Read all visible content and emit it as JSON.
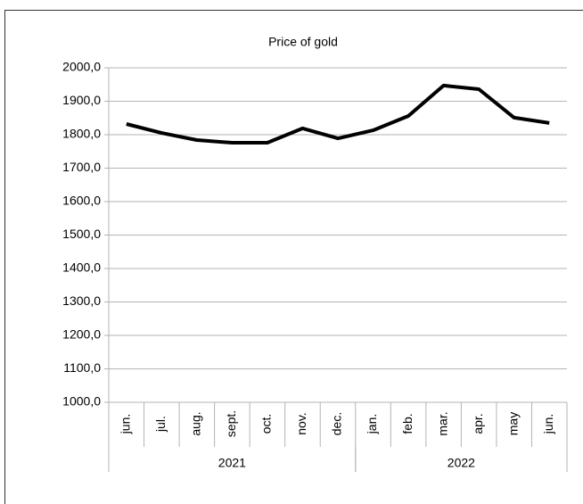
{
  "chart_data": {
    "type": "line",
    "title": "Price of gold",
    "groups": [
      {
        "label": "2021",
        "categories": [
          "jun.",
          "jul.",
          "aug.",
          "sept.",
          "oct.",
          "nov.",
          "dec."
        ]
      },
      {
        "label": "2022",
        "categories": [
          "jan.",
          "feb.",
          "mar.",
          "apr.",
          "may",
          "jun."
        ]
      }
    ],
    "series": [
      {
        "name": "Price of gold",
        "color": "#000000",
        "values": [
          1832,
          1805,
          1784,
          1776,
          1776,
          1819,
          1789,
          1813,
          1856,
          1947,
          1936,
          1851,
          1835
        ]
      }
    ],
    "ylim": [
      1000,
      2000
    ],
    "yticks": [
      {
        "value": 1000,
        "label": "1000,0"
      },
      {
        "value": 1100,
        "label": "1100,0"
      },
      {
        "value": 1200,
        "label": "1200,0"
      },
      {
        "value": 1300,
        "label": "1300,0"
      },
      {
        "value": 1400,
        "label": "1400,0"
      },
      {
        "value": 1500,
        "label": "1500,0"
      },
      {
        "value": 1600,
        "label": "1600,0"
      },
      {
        "value": 1700,
        "label": "1700,0"
      },
      {
        "value": 1800,
        "label": "1800,0"
      },
      {
        "value": 1900,
        "label": "1900,0"
      },
      {
        "value": 2000,
        "label": "2000,0"
      }
    ],
    "grid": true
  }
}
